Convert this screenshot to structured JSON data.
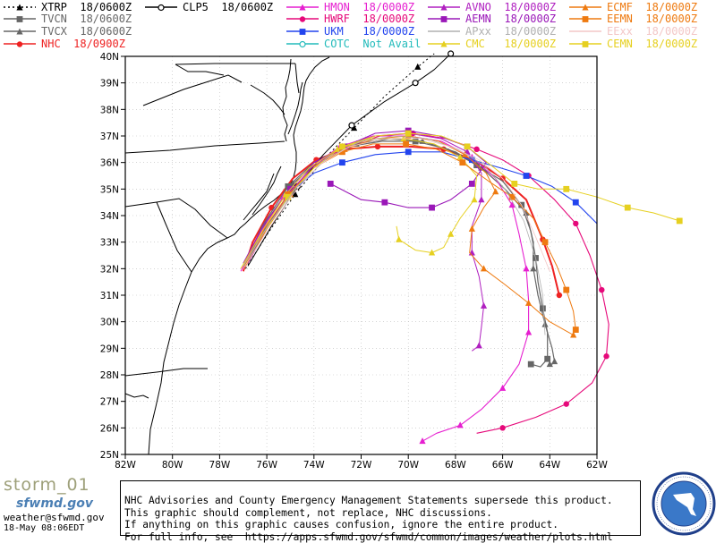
{
  "legend": [
    {
      "label": "XTRP  18/0600Z",
      "color": "#000000",
      "dash": "2,3",
      "marker": "triangle-filled"
    },
    {
      "label": "TVCN  18/0600Z",
      "color": "#666666",
      "dash": "",
      "marker": "square"
    },
    {
      "label": "TVCX  18/0600Z",
      "color": "#666666",
      "dash": "",
      "marker": "triangle-filled"
    },
    {
      "label": "NHC  18/0900Z",
      "color": "#ee2222",
      "dash": "",
      "marker": "circle"
    },
    {
      "label": "CLP5  18/0600Z",
      "color": "#000000",
      "dash": "",
      "marker": "circle-open"
    },
    {
      "label": "HMON  18/0000Z",
      "color": "#e61fd0",
      "dash": "",
      "marker": "triangle-filled"
    },
    {
      "label": "HWRF  18/0000Z",
      "color": "#e6097a",
      "dash": "",
      "marker": "circle"
    },
    {
      "label": "UKM   18/0000Z",
      "color": "#2244ee",
      "dash": "",
      "marker": "square"
    },
    {
      "label": "COTC  Not Avail",
      "color": "#22bbbb",
      "dash": "",
      "marker": "circle-open"
    },
    {
      "label": "AVNO  18/0000Z",
      "color": "#b020c0",
      "dash": "",
      "marker": "triangle-filled"
    },
    {
      "label": "AEMN  18/0000Z",
      "color": "#9a18b8",
      "dash": "",
      "marker": "square"
    },
    {
      "label": "APxx  18/0000Z",
      "color": "#b0b0b0",
      "dash": "",
      "marker": "none"
    },
    {
      "label": "CMC   18/0000Z",
      "color": "#e6d020",
      "dash": "",
      "marker": "triangle-filled"
    },
    {
      "label": "ECMF  18/0000Z",
      "color": "#ee7a10",
      "dash": "",
      "marker": "triangle-filled"
    },
    {
      "label": "EEMN  18/0000Z",
      "color": "#ee7a10",
      "dash": "",
      "marker": "square"
    },
    {
      "label": "EExx  18/0000Z",
      "color": "#f3c7c7",
      "dash": "",
      "marker": "none"
    },
    {
      "label": "CEMN  18/0000Z",
      "color": "#e6d020",
      "dash": "",
      "marker": "square"
    }
  ],
  "axes": {
    "lat_labels": [
      "25N",
      "26N",
      "27N",
      "28N",
      "29N",
      "30N",
      "31N",
      "32N",
      "33N",
      "34N",
      "35N",
      "36N",
      "37N",
      "38N",
      "39N",
      "40N"
    ],
    "lon_labels": [
      "82W",
      "80W",
      "78W",
      "76W",
      "74W",
      "72W",
      "70W",
      "68W",
      "66W",
      "64W",
      "62W"
    ],
    "lon_range": [
      -82,
      -62
    ],
    "lat_range": [
      25,
      40
    ]
  },
  "tracks": [
    {
      "model": "NHC",
      "color": "#ee2222",
      "width": 2,
      "marker": "circle",
      "every": 2,
      "points": [
        [
          -77.0,
          31.9
        ],
        [
          -76.6,
          33.0
        ],
        [
          -75.8,
          34.3
        ],
        [
          -74.9,
          35.4
        ],
        [
          -73.9,
          36.1
        ],
        [
          -72.7,
          36.5
        ],
        [
          -71.3,
          36.6
        ],
        [
          -69.9,
          36.6
        ],
        [
          -68.5,
          36.5
        ],
        [
          -67.2,
          36.1
        ],
        [
          -66.0,
          35.4
        ],
        [
          -65.0,
          34.6
        ],
        [
          -64.3,
          33.1
        ],
        [
          -63.9,
          32.1
        ],
        [
          -63.6,
          31.0
        ]
      ]
    },
    {
      "model": "TVCN",
      "color": "#666666",
      "width": 1.2,
      "marker": "square",
      "every": 2,
      "points": [
        [
          -77.0,
          32.0
        ],
        [
          -76.2,
          33.6
        ],
        [
          -75.1,
          35.1
        ],
        [
          -74.0,
          36.0
        ],
        [
          -72.6,
          36.6
        ],
        [
          -71.1,
          36.8
        ],
        [
          -69.7,
          36.8
        ],
        [
          -68.3,
          36.5
        ],
        [
          -67.1,
          35.9
        ],
        [
          -66.0,
          35.3
        ],
        [
          -65.2,
          34.4
        ],
        [
          -64.8,
          33.4
        ],
        [
          -64.6,
          32.4
        ],
        [
          -64.5,
          31.5
        ],
        [
          -64.3,
          30.5
        ],
        [
          -64.1,
          29.6
        ],
        [
          -64.1,
          28.6
        ],
        [
          -64.4,
          28.3
        ],
        [
          -64.8,
          28.4
        ]
      ]
    },
    {
      "model": "TVCX",
      "color": "#666666",
      "width": 1.2,
      "marker": "triangle-filled",
      "every": 2,
      "points": [
        [
          -76.9,
          32.2
        ],
        [
          -76.0,
          33.8
        ],
        [
          -74.9,
          35.2
        ],
        [
          -73.6,
          36.2
        ],
        [
          -72.2,
          36.7
        ],
        [
          -70.8,
          36.9
        ],
        [
          -69.4,
          36.8
        ],
        [
          -68.0,
          36.4
        ],
        [
          -66.9,
          35.8
        ],
        [
          -65.9,
          35.0
        ],
        [
          -65.0,
          34.1
        ],
        [
          -64.7,
          33.0
        ],
        [
          -64.7,
          32.0
        ],
        [
          -64.5,
          31.0
        ],
        [
          -64.2,
          29.9
        ],
        [
          -63.9,
          29.0
        ],
        [
          -63.8,
          28.5
        ],
        [
          -63.9,
          28.4
        ],
        [
          -64.0,
          28.4
        ]
      ]
    },
    {
      "model": "XTRP",
      "color": "#000000",
      "width": 1,
      "dash": "2,3",
      "marker": "triangle-filled",
      "every": 2,
      "points": [
        [
          -76.9,
          32.0
        ],
        [
          -75.9,
          33.4
        ],
        [
          -74.8,
          34.8
        ],
        [
          -73.6,
          36.1
        ],
        [
          -72.3,
          37.3
        ],
        [
          -71.0,
          38.5
        ],
        [
          -69.6,
          39.6
        ],
        [
          -68.9,
          40.1
        ]
      ]
    },
    {
      "model": "CLP5",
      "color": "#000000",
      "width": 1,
      "marker": "circle-open",
      "every": 2,
      "points": [
        [
          -76.8,
          32.1
        ],
        [
          -75.8,
          33.6
        ],
        [
          -74.7,
          35.1
        ],
        [
          -73.6,
          36.3
        ],
        [
          -72.4,
          37.4
        ],
        [
          -71.0,
          38.3
        ],
        [
          -69.7,
          39.0
        ],
        [
          -68.9,
          39.5
        ],
        [
          -68.2,
          40.1
        ]
      ]
    },
    {
      "model": "HMON",
      "color": "#e61fd0",
      "width": 1.1,
      "marker": "triangle-filled",
      "every": 2,
      "points": [
        [
          -77.1,
          31.9
        ],
        [
          -76.3,
          33.3
        ],
        [
          -75.3,
          34.7
        ],
        [
          -74.2,
          35.8
        ],
        [
          -72.9,
          36.6
        ],
        [
          -71.5,
          37.0
        ],
        [
          -70.0,
          37.0
        ],
        [
          -68.6,
          36.8
        ],
        [
          -67.3,
          36.2
        ],
        [
          -66.3,
          35.4
        ],
        [
          -65.6,
          34.4
        ],
        [
          -65.3,
          33.3
        ],
        [
          -65.0,
          32.0
        ],
        [
          -64.9,
          30.8
        ],
        [
          -64.9,
          29.6
        ],
        [
          -65.3,
          28.4
        ],
        [
          -66.0,
          27.5
        ],
        [
          -66.9,
          26.7
        ],
        [
          -67.8,
          26.1
        ],
        [
          -68.8,
          25.8
        ],
        [
          -69.4,
          25.5
        ]
      ]
    },
    {
      "model": "HWRF",
      "color": "#e6097a",
      "width": 1.1,
      "marker": "circle",
      "every": 2,
      "points": [
        [
          -76.9,
          32.1
        ],
        [
          -76.0,
          33.6
        ],
        [
          -75.0,
          34.9
        ],
        [
          -73.9,
          36.0
        ],
        [
          -72.6,
          36.6
        ],
        [
          -71.2,
          37.0
        ],
        [
          -69.8,
          37.1
        ],
        [
          -68.4,
          36.9
        ],
        [
          -67.1,
          36.5
        ],
        [
          -66.0,
          36.1
        ],
        [
          -64.9,
          35.5
        ],
        [
          -63.8,
          34.6
        ],
        [
          -62.9,
          33.7
        ],
        [
          -62.3,
          32.5
        ],
        [
          -61.8,
          31.2
        ],
        [
          -61.5,
          29.9
        ],
        [
          -61.6,
          28.7
        ],
        [
          -62.2,
          27.7
        ],
        [
          -63.3,
          26.9
        ],
        [
          -64.6,
          26.4
        ],
        [
          -66.0,
          26.0
        ],
        [
          -67.1,
          25.8
        ]
      ]
    },
    {
      "model": "UKM",
      "color": "#2244ee",
      "width": 1.1,
      "marker": "square",
      "every": 2,
      "points": [
        [
          -76.8,
          32.3
        ],
        [
          -76.0,
          33.6
        ],
        [
          -75.1,
          34.8
        ],
        [
          -74.0,
          35.6
        ],
        [
          -72.8,
          36.0
        ],
        [
          -71.4,
          36.3
        ],
        [
          -70.0,
          36.4
        ],
        [
          -68.6,
          36.4
        ],
        [
          -67.3,
          36.1
        ],
        [
          -66.1,
          35.8
        ],
        [
          -65.0,
          35.5
        ],
        [
          -63.9,
          35.1
        ],
        [
          -62.9,
          34.5
        ],
        [
          -62.0,
          33.7
        ]
      ]
    },
    {
      "model": "AVNO",
      "color": "#b020c0",
      "width": 1,
      "marker": "triangle-filled",
      "every": 2,
      "points": [
        [
          -76.8,
          32.2
        ],
        [
          -76.0,
          33.5
        ],
        [
          -75.1,
          34.8
        ],
        [
          -74.1,
          35.8
        ],
        [
          -72.8,
          36.6
        ],
        [
          -71.4,
          37.0
        ],
        [
          -70.0,
          37.1
        ],
        [
          -68.6,
          36.9
        ],
        [
          -67.5,
          36.4
        ],
        [
          -66.9,
          35.6
        ],
        [
          -66.9,
          34.6
        ],
        [
          -67.3,
          33.6
        ],
        [
          -67.3,
          32.6
        ],
        [
          -67.0,
          31.7
        ],
        [
          -66.8,
          30.6
        ],
        [
          -66.9,
          29.8
        ],
        [
          -67.0,
          29.1
        ],
        [
          -67.3,
          28.9
        ]
      ]
    },
    {
      "model": "AEMN",
      "color": "#9a18b8",
      "width": 1.1,
      "marker": "square",
      "every": 2,
      "points": [
        [
          -77.0,
          32.2
        ],
        [
          -76.1,
          33.7
        ],
        [
          -75.0,
          35.0
        ],
        [
          -74.0,
          36.0
        ],
        [
          -72.7,
          36.6
        ],
        [
          -71.4,
          37.1
        ],
        [
          -70.0,
          37.2
        ],
        [
          -68.7,
          37.0
        ],
        [
          -67.5,
          36.6
        ],
        [
          -66.7,
          36.0
        ],
        [
          -67.3,
          35.2
        ],
        [
          -68.2,
          34.6
        ],
        [
          -69.0,
          34.3
        ],
        [
          -70.0,
          34.3
        ],
        [
          -71.0,
          34.5
        ],
        [
          -72.0,
          34.6
        ],
        [
          -73.3,
          35.2
        ]
      ]
    },
    {
      "model": "CMC",
      "color": "#e6d020",
      "width": 1,
      "marker": "triangle-filled",
      "every": 2,
      "points": [
        [
          -77.1,
          32.0
        ],
        [
          -76.2,
          33.4
        ],
        [
          -75.2,
          34.8
        ],
        [
          -74.2,
          35.8
        ],
        [
          -73.0,
          36.5
        ],
        [
          -71.6,
          36.9
        ],
        [
          -70.2,
          36.9
        ],
        [
          -68.9,
          36.7
        ],
        [
          -67.8,
          36.2
        ],
        [
          -67.1,
          35.5
        ],
        [
          -67.2,
          34.6
        ],
        [
          -67.8,
          33.9
        ],
        [
          -68.2,
          33.3
        ],
        [
          -68.5,
          32.8
        ],
        [
          -69.0,
          32.6
        ],
        [
          -69.7,
          32.7
        ],
        [
          -70.4,
          33.1
        ],
        [
          -70.5,
          33.6
        ]
      ]
    },
    {
      "model": "ECMF",
      "color": "#ee7a10",
      "width": 1,
      "marker": "triangle-filled",
      "every": 2,
      "points": [
        [
          -76.9,
          32.1
        ],
        [
          -76.0,
          33.5
        ],
        [
          -75.0,
          34.8
        ],
        [
          -73.9,
          35.9
        ],
        [
          -72.7,
          36.5
        ],
        [
          -71.4,
          36.9
        ],
        [
          -70.0,
          37.0
        ],
        [
          -68.7,
          36.8
        ],
        [
          -67.6,
          36.3
        ],
        [
          -66.7,
          35.6
        ],
        [
          -66.3,
          34.9
        ],
        [
          -66.8,
          34.3
        ],
        [
          -67.3,
          33.5
        ],
        [
          -67.4,
          32.6
        ],
        [
          -66.8,
          32.0
        ],
        [
          -65.9,
          31.4
        ],
        [
          -64.9,
          30.7
        ],
        [
          -64.0,
          30.0
        ],
        [
          -63.0,
          29.5
        ]
      ]
    },
    {
      "model": "EEMN",
      "color": "#ee7a10",
      "width": 1,
      "marker": "square",
      "every": 2,
      "points": [
        [
          -77.0,
          32.0
        ],
        [
          -76.1,
          33.5
        ],
        [
          -75.1,
          34.8
        ],
        [
          -74.0,
          35.8
        ],
        [
          -72.8,
          36.4
        ],
        [
          -71.5,
          36.7
        ],
        [
          -70.1,
          36.7
        ],
        [
          -68.8,
          36.5
        ],
        [
          -67.7,
          36.0
        ],
        [
          -66.6,
          35.3
        ],
        [
          -65.6,
          34.7
        ],
        [
          -64.7,
          33.9
        ],
        [
          -64.2,
          33.0
        ],
        [
          -63.7,
          32.1
        ],
        [
          -63.3,
          31.2
        ],
        [
          -63.0,
          30.4
        ],
        [
          -62.9,
          29.7
        ]
      ]
    },
    {
      "model": "CEMN",
      "color": "#e6d020",
      "width": 1,
      "marker": "square",
      "every": 2,
      "points": [
        [
          -77.0,
          32.1
        ],
        [
          -76.1,
          33.4
        ],
        [
          -75.1,
          34.7
        ],
        [
          -74.0,
          35.8
        ],
        [
          -72.8,
          36.6
        ],
        [
          -71.4,
          37.0
        ],
        [
          -70.0,
          37.1
        ],
        [
          -68.6,
          37.0
        ],
        [
          -67.5,
          36.6
        ],
        [
          -66.5,
          35.9
        ],
        [
          -65.5,
          35.2
        ],
        [
          -64.5,
          35.0
        ],
        [
          -63.3,
          35.0
        ],
        [
          -62.0,
          34.7
        ],
        [
          -60.7,
          34.3
        ],
        [
          -59.6,
          34.1
        ],
        [
          -58.5,
          33.8
        ]
      ]
    },
    {
      "model": "APxx",
      "color": "#b0b0b0",
      "width": 0.8,
      "marker": "none",
      "every": 99,
      "points": [
        [
          -77.0,
          32.1
        ],
        [
          -75.9,
          33.7
        ],
        [
          -74.7,
          35.1
        ],
        [
          -73.4,
          36.2
        ],
        [
          -72.0,
          36.8
        ],
        [
          -70.6,
          37.0
        ],
        [
          -69.2,
          36.9
        ],
        [
          -67.9,
          36.5
        ],
        [
          -66.8,
          35.9
        ],
        [
          -65.9,
          35.0
        ],
        [
          -65.1,
          33.8
        ],
        [
          -64.6,
          32.4
        ],
        [
          -64.3,
          31.0
        ],
        [
          -64.2,
          29.5
        ]
      ]
    },
    {
      "model": "EExx",
      "color": "#f3c7c7",
      "width": 0.8,
      "marker": "none",
      "every": 99,
      "points": [
        [
          -77.0,
          32.0
        ],
        [
          -76.0,
          33.4
        ],
        [
          -74.9,
          34.8
        ],
        [
          -73.8,
          35.9
        ],
        [
          -72.5,
          36.6
        ],
        [
          -71.0,
          36.9
        ],
        [
          -69.5,
          36.9
        ],
        [
          -68.2,
          36.6
        ],
        [
          -67.0,
          36.1
        ],
        [
          -66.0,
          35.4
        ],
        [
          -65.2,
          34.4
        ],
        [
          -64.6,
          33.2
        ],
        [
          -64.0,
          31.9
        ]
      ]
    }
  ],
  "footer": {
    "storm_label": "storm_01",
    "logo_text": "sfwmd.gov",
    "email": "weather@sfwmd.gov",
    "timestamp": "18-May 08:06EDT",
    "disclaimer": [
      "NHC Advisories and County Emergency Management Statements supersede this product.",
      "This graphic should complement, not replace, NHC discussions.",
      "If anything on this graphic causes confusion, ignore the entire product.",
      "For full info, see  https://apps.sfwmd.gov/sfwmd/common/images/weather/plots.html"
    ]
  }
}
